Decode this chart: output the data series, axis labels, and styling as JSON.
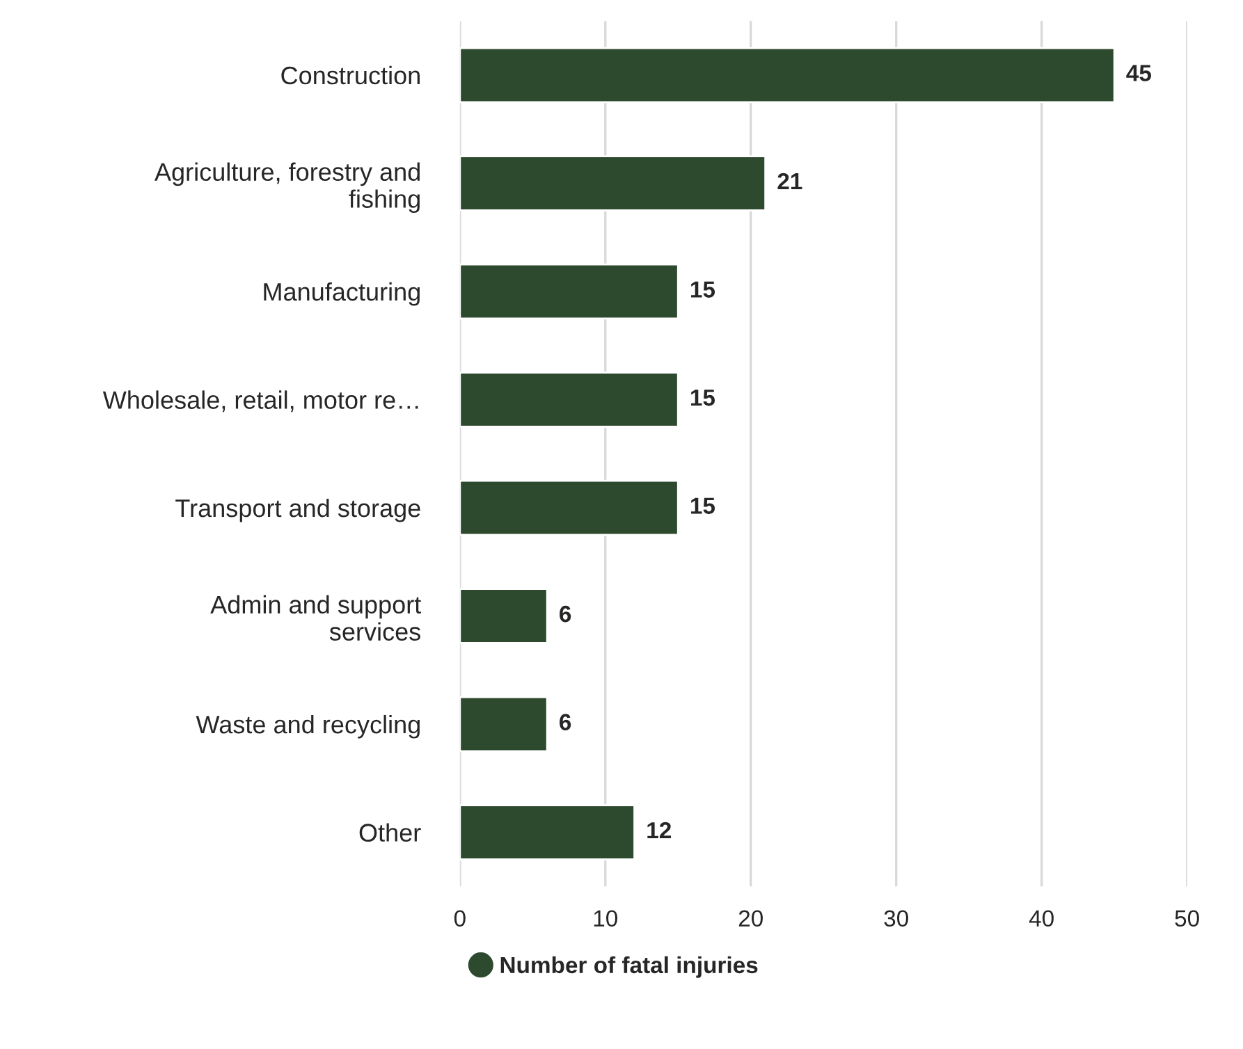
{
  "chart_data": {
    "type": "bar",
    "orientation": "horizontal",
    "categories": [
      "Construction",
      "Agriculture, forestry and\nfishing",
      "Manufacturing",
      "Wholesale, retail, motor re…",
      "Transport and storage",
      "Admin and support\nservices",
      "Waste and recycling",
      "Other"
    ],
    "series": [
      {
        "name": "Number of fatal injuries",
        "color": "#2d4a2f",
        "values": [
          45,
          21,
          15,
          15,
          15,
          6,
          6,
          12
        ]
      }
    ],
    "xlim": [
      0,
      50
    ],
    "xticks": [
      0,
      10,
      20,
      30,
      40,
      50
    ],
    "grid": "x",
    "legend": "bottom left",
    "data_labels": true
  }
}
